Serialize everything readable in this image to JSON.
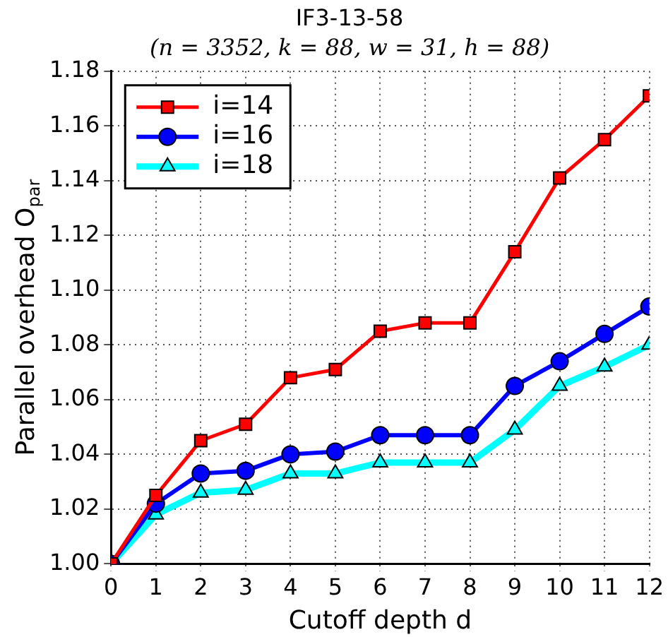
{
  "chart_data": {
    "type": "line",
    "title": "IF3-13-58",
    "subtitle": "(n = 3352, k = 88, w = 31, h = 88)",
    "xlabel": "Cutoff depth d",
    "ylabel": "Parallel overhead O$_{par}$",
    "x": [
      0,
      1,
      2,
      3,
      4,
      5,
      6,
      7,
      8,
      9,
      10,
      11,
      12
    ],
    "xlim": [
      0,
      12
    ],
    "xticks": [
      0,
      1,
      2,
      3,
      4,
      5,
      6,
      7,
      8,
      9,
      10,
      11,
      12
    ],
    "ylim": [
      1.0,
      1.18
    ],
    "yticks": [
      {
        "value": 1.0,
        "label": "1.00"
      },
      {
        "value": 1.02,
        "label": "1.02"
      },
      {
        "value": 1.04,
        "label": "1.04"
      },
      {
        "value": 1.06,
        "label": "1.06"
      },
      {
        "value": 1.08,
        "label": "1.08"
      },
      {
        "value": 1.1,
        "label": "1.10"
      },
      {
        "value": 1.12,
        "label": "1.12"
      },
      {
        "value": 1.14,
        "label": "1.14"
      },
      {
        "value": 1.16,
        "label": "1.16"
      },
      {
        "value": 1.18,
        "label": "1.18"
      }
    ],
    "grid": true,
    "legend": "top left",
    "line_style": "solid",
    "series": [
      {
        "name": "i=14",
        "color": "#ff0000",
        "marker": "square",
        "values": [
          1.0,
          1.025,
          1.045,
          1.051,
          1.068,
          1.071,
          1.085,
          1.088,
          1.088,
          1.114,
          1.141,
          1.155,
          1.171
        ]
      },
      {
        "name": "i=16",
        "color": "#0000ff",
        "marker": "circle",
        "values": [
          1.0,
          1.022,
          1.033,
          1.034,
          1.04,
          1.041,
          1.047,
          1.047,
          1.047,
          1.065,
          1.074,
          1.084,
          1.094
        ]
      },
      {
        "name": "i=18",
        "color": "#00ffff",
        "marker": "triangle",
        "values": [
          1.0,
          1.018,
          1.026,
          1.027,
          1.033,
          1.033,
          1.037,
          1.037,
          1.037,
          1.049,
          1.065,
          1.072,
          1.08
        ]
      }
    ]
  }
}
